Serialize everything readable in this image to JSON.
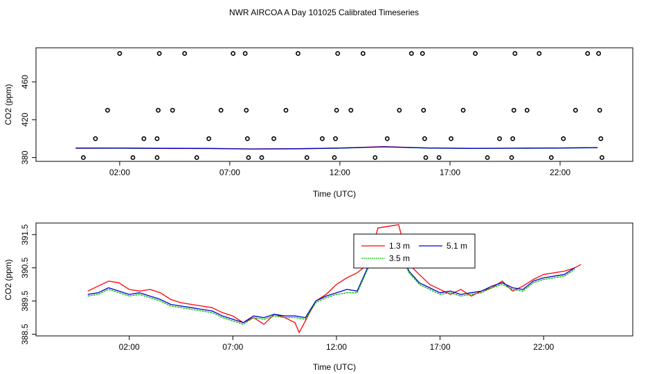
{
  "title": "NWR AIRCOA A  Day 101025  Calibrated Timeseries",
  "chart_data": [
    {
      "type": "scatter",
      "xlabel": "Time (UTC)",
      "ylabel": "CO2 (ppm)",
      "xlim": [
        -1.8,
        25.3
      ],
      "ylim": [
        376,
        496
      ],
      "x_ticks": [
        2,
        7,
        12,
        17,
        22
      ],
      "x_tick_labels": [
        "02:00",
        "07:00",
        "12:00",
        "17:00",
        "22:00"
      ],
      "y_ticks": [
        380,
        420,
        460
      ],
      "y_tick_labels": [
        "380",
        "420",
        "460"
      ],
      "marker": "open-circle",
      "points": [
        {
          "x": 0.35,
          "y": 380
        },
        {
          "x": 0.9,
          "y": 400
        },
        {
          "x": 1.45,
          "y": 430
        },
        {
          "x": 2.0,
          "y": 490
        },
        {
          "x": 2.6,
          "y": 380
        },
        {
          "x": 3.1,
          "y": 400
        },
        {
          "x": 3.7,
          "y": 380
        },
        {
          "x": 3.7,
          "y": 400
        },
        {
          "x": 3.75,
          "y": 430
        },
        {
          "x": 3.8,
          "y": 490
        },
        {
          "x": 4.4,
          "y": 430
        },
        {
          "x": 4.95,
          "y": 490
        },
        {
          "x": 5.5,
          "y": 380
        },
        {
          "x": 6.05,
          "y": 400
        },
        {
          "x": 6.6,
          "y": 430
        },
        {
          "x": 7.15,
          "y": 490
        },
        {
          "x": 7.7,
          "y": 490
        },
        {
          "x": 7.75,
          "y": 430
        },
        {
          "x": 7.8,
          "y": 400
        },
        {
          "x": 7.85,
          "y": 380
        },
        {
          "x": 8.45,
          "y": 380
        },
        {
          "x": 9.0,
          "y": 400
        },
        {
          "x": 9.55,
          "y": 430
        },
        {
          "x": 10.1,
          "y": 490
        },
        {
          "x": 10.5,
          "y": 380
        },
        {
          "x": 11.2,
          "y": 400
        },
        {
          "x": 11.75,
          "y": 380
        },
        {
          "x": 11.8,
          "y": 400
        },
        {
          "x": 11.85,
          "y": 430
        },
        {
          "x": 11.9,
          "y": 490
        },
        {
          "x": 12.5,
          "y": 430
        },
        {
          "x": 13.05,
          "y": 490
        },
        {
          "x": 13.6,
          "y": 380
        },
        {
          "x": 14.15,
          "y": 400
        },
        {
          "x": 14.7,
          "y": 430
        },
        {
          "x": 15.25,
          "y": 490
        },
        {
          "x": 15.75,
          "y": 490
        },
        {
          "x": 15.8,
          "y": 430
        },
        {
          "x": 15.85,
          "y": 400
        },
        {
          "x": 15.9,
          "y": 380
        },
        {
          "x": 16.5,
          "y": 380
        },
        {
          "x": 17.05,
          "y": 400
        },
        {
          "x": 17.6,
          "y": 430
        },
        {
          "x": 18.15,
          "y": 490
        },
        {
          "x": 18.7,
          "y": 380
        },
        {
          "x": 19.25,
          "y": 400
        },
        {
          "x": 19.8,
          "y": 380
        },
        {
          "x": 19.85,
          "y": 400
        },
        {
          "x": 19.9,
          "y": 430
        },
        {
          "x": 19.95,
          "y": 490
        },
        {
          "x": 20.5,
          "y": 430
        },
        {
          "x": 21.05,
          "y": 490
        },
        {
          "x": 21.6,
          "y": 380
        },
        {
          "x": 22.15,
          "y": 400
        },
        {
          "x": 22.7,
          "y": 430
        },
        {
          "x": 23.25,
          "y": 490
        },
        {
          "x": 23.75,
          "y": 490
        },
        {
          "x": 23.8,
          "y": 430
        },
        {
          "x": 23.85,
          "y": 400
        },
        {
          "x": 23.9,
          "y": 380
        }
      ],
      "series": [
        {
          "color": "#ff0000",
          "x": [
            0,
            2,
            4,
            6,
            8,
            10,
            12,
            14,
            16,
            18,
            20,
            22,
            23.7
          ],
          "y": [
            390.1,
            390.2,
            389.9,
            389.8,
            389.2,
            389.4,
            390.2,
            391.6,
            390.2,
            389.8,
            390.0,
            390.2,
            390.6
          ]
        },
        {
          "color": "#00cc00",
          "x": [
            0,
            2,
            4,
            6,
            8,
            10,
            12,
            14,
            16,
            18,
            20,
            22,
            23.7
          ],
          "y": [
            389.8,
            389.8,
            389.6,
            389.5,
            389.0,
            389.2,
            389.9,
            391.3,
            390.0,
            389.6,
            389.8,
            390.0,
            390.4
          ]
        },
        {
          "color": "#0000cc",
          "x": [
            0,
            2,
            4,
            6,
            8,
            10,
            12,
            14,
            16,
            18,
            20,
            22,
            23.7
          ],
          "y": [
            389.9,
            390.0,
            389.7,
            389.6,
            389.1,
            389.3,
            390.0,
            391.4,
            390.1,
            389.7,
            389.9,
            390.1,
            390.5
          ]
        }
      ]
    },
    {
      "type": "line",
      "xlabel": "Time (UTC)",
      "ylabel": "CO2 (ppm)",
      "xlim": [
        -2.5,
        26.3
      ],
      "ylim": [
        388.45,
        391.85
      ],
      "x_ticks": [
        2,
        7,
        12,
        17,
        22
      ],
      "x_tick_labels": [
        "02:00",
        "07:00",
        "12:00",
        "17:00",
        "22:00"
      ],
      "y_ticks": [
        388.5,
        389.5,
        390.5,
        391.5
      ],
      "y_tick_labels": [
        "388.5",
        "389.5",
        "390.5",
        "391.5"
      ],
      "legend": {
        "placement": "top-center",
        "entries": [
          {
            "label": "1.3 m",
            "color": "#ff0000"
          },
          {
            "label": "5.1 m",
            "color": "#0000cc"
          },
          {
            "label": "3.5 m",
            "color": "#00bb00"
          }
        ]
      },
      "series": [
        {
          "name": "1.3 m",
          "color": "#ff0000",
          "x": [
            0,
            0.5,
            1,
            1.5,
            2,
            2.5,
            3,
            3.5,
            4,
            4.5,
            5,
            5.5,
            6,
            6.5,
            7,
            7.5,
            8,
            8.5,
            9,
            9.5,
            10,
            10.2,
            10.5,
            11,
            11.5,
            12,
            12.5,
            13,
            13.5,
            14,
            14.5,
            15,
            15.5,
            16,
            16.5,
            17,
            17.5,
            18,
            18.5,
            19,
            19.5,
            20,
            20.5,
            21,
            21.5,
            22,
            22.5,
            23,
            23.5,
            23.8
          ],
          "y": [
            389.8,
            389.95,
            390.1,
            390.05,
            389.85,
            389.8,
            389.85,
            389.75,
            389.55,
            389.45,
            389.4,
            389.35,
            389.3,
            389.15,
            389.05,
            388.85,
            389.0,
            388.8,
            389.1,
            389.0,
            388.85,
            388.55,
            388.9,
            389.5,
            389.7,
            390.0,
            390.2,
            390.35,
            390.6,
            391.7,
            391.75,
            391.8,
            390.6,
            390.3,
            390.0,
            389.85,
            389.7,
            389.85,
            389.65,
            389.8,
            389.9,
            390.1,
            389.8,
            389.95,
            390.15,
            390.3,
            390.35,
            390.4,
            390.5,
            390.6
          ]
        },
        {
          "name": "5.1 m",
          "color": "#0000cc",
          "x": [
            0,
            0.5,
            1,
            1.5,
            2,
            2.5,
            3,
            3.5,
            4,
            4.5,
            5,
            5.5,
            6,
            6.5,
            7,
            7.5,
            8,
            8.5,
            9,
            9.5,
            10,
            10.5,
            11,
            11.5,
            12,
            12.5,
            13,
            13.5,
            14,
            14.5,
            15,
            15.5,
            16,
            16.5,
            17,
            17.5,
            18,
            18.5,
            19,
            19.5,
            20,
            20.5,
            21,
            21.5,
            22,
            22.5,
            23,
            23.5
          ],
          "y": [
            389.7,
            389.75,
            389.9,
            389.8,
            389.7,
            389.75,
            389.65,
            389.55,
            389.4,
            389.35,
            389.3,
            389.25,
            389.2,
            389.05,
            388.95,
            388.85,
            389.05,
            389.0,
            389.1,
            389.05,
            389.05,
            389.0,
            389.5,
            389.65,
            389.75,
            389.85,
            389.8,
            390.5,
            391.35,
            391.5,
            391.1,
            390.4,
            390.05,
            389.9,
            389.75,
            389.8,
            389.7,
            389.75,
            389.8,
            389.95,
            390.05,
            389.9,
            389.85,
            390.1,
            390.2,
            390.25,
            390.3,
            390.5
          ]
        },
        {
          "name": "3.5 m",
          "color": "#00bb00",
          "x": [
            0,
            0.5,
            1,
            1.5,
            2,
            2.5,
            3,
            3.5,
            4,
            4.5,
            5,
            5.5,
            6,
            6.5,
            7,
            7.5,
            8,
            8.5,
            9,
            9.5,
            10,
            10.5,
            11,
            11.5,
            12,
            12.5,
            13,
            13.5,
            14,
            14.5,
            15,
            15.5,
            16,
            16.5,
            17,
            17.5,
            18,
            18.5,
            19,
            19.5,
            20,
            20.5,
            21,
            21.5,
            22,
            22.5,
            23,
            23.5
          ],
          "y": [
            389.65,
            389.7,
            389.85,
            389.75,
            389.65,
            389.7,
            389.6,
            389.5,
            389.35,
            389.3,
            389.25,
            389.2,
            389.15,
            389.0,
            388.9,
            388.8,
            389.0,
            388.95,
            389.05,
            389.0,
            389.0,
            388.95,
            389.45,
            389.6,
            389.7,
            389.75,
            389.75,
            390.45,
            391.3,
            391.45,
            391.05,
            390.35,
            390.0,
            389.85,
            389.7,
            389.75,
            389.65,
            389.7,
            389.75,
            389.9,
            390.0,
            389.85,
            389.8,
            390.05,
            390.15,
            390.2,
            390.25,
            390.45
          ]
        }
      ]
    }
  ]
}
